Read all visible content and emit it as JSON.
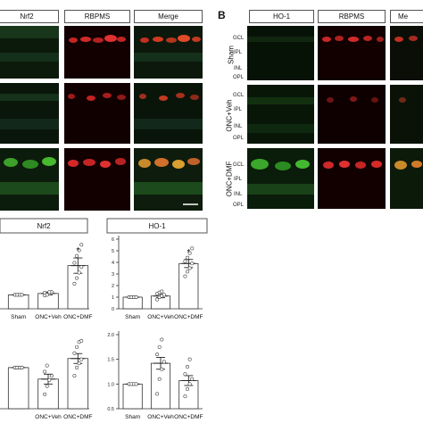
{
  "panel_b_letter": "B",
  "panel_a": {
    "headers": [
      "Nrf2",
      "RBPMS",
      "Merge"
    ]
  },
  "panel_b": {
    "headers": [
      "HO-1",
      "RBPMS",
      "Me"
    ],
    "rows": [
      "Sham",
      "ONC+Veh",
      "ONC+DMF"
    ],
    "layers": [
      "GCL",
      "IPL",
      "INL",
      "OPL"
    ]
  },
  "chart_data": [
    {
      "type": "bar",
      "title": "Nrf2",
      "categories": [
        "Sham",
        "ONC+Veh",
        "ONC+DMF"
      ],
      "values": [
        1.0,
        1.1,
        3.1
      ],
      "errors": [
        0.05,
        0.1,
        0.55
      ],
      "points": [
        [
          1,
          1,
          1,
          1,
          1,
          1,
          1,
          1
        ],
        [
          0.95,
          1.05,
          1.1,
          1.2,
          1.15,
          1.0,
          1.2
        ],
        [
          1.8,
          2.2,
          2.6,
          3.0,
          3.3,
          3.8,
          4.2,
          4.6
        ]
      ],
      "significance": [
        "",
        "",
        "*"
      ]
    },
    {
      "type": "bar",
      "title": "HO-1",
      "categories": [
        "Sham",
        "ONC+Veh",
        "ONC+DMF"
      ],
      "values": [
        1.0,
        1.1,
        3.9
      ],
      "errors": [
        0.05,
        0.15,
        0.35
      ],
      "ylim": [
        0,
        6
      ],
      "yticks": [
        "0",
        "1",
        "2",
        "3",
        "4",
        "5",
        "6"
      ],
      "points": [
        [
          1,
          1,
          1,
          1,
          1,
          1,
          1,
          1
        ],
        [
          0.8,
          1.0,
          1.1,
          1.2,
          1.3,
          1.4,
          1.5
        ],
        [
          2.8,
          3.2,
          3.5,
          3.9,
          4.1,
          4.4,
          4.8,
          5.2
        ]
      ],
      "significance": [
        "",
        "",
        "*"
      ]
    },
    {
      "type": "bar",
      "categories": [
        "",
        "ONC+Veh",
        "ONC+DMF"
      ],
      "values": [
        1.0,
        0.72,
        1.22
      ],
      "errors": [
        0.02,
        0.12,
        0.12
      ],
      "points": [
        [
          1,
          1,
          1,
          1,
          1,
          1,
          1,
          1
        ],
        [
          0.35,
          0.55,
          0.7,
          0.8,
          0.9,
          1.05
        ],
        [
          0.8,
          1.0,
          1.1,
          1.2,
          1.35,
          1.5,
          1.62,
          1.65
        ]
      ]
    },
    {
      "type": "bar",
      "categories": [
        "Sham",
        "ONC+Veh",
        "ONC+DMF"
      ],
      "values": [
        1.0,
        1.42,
        1.07
      ],
      "errors": [
        0.01,
        0.12,
        0.1
      ],
      "ylim": [
        0.5,
        2.0
      ],
      "yticks": [
        "0.5",
        "1.0",
        "1.5",
        "2.0"
      ],
      "points": [
        [
          1,
          1,
          1,
          1,
          1,
          1,
          1,
          1
        ],
        [
          0.8,
          1.1,
          1.3,
          1.45,
          1.6,
          1.75,
          1.9
        ],
        [
          0.75,
          0.9,
          1.0,
          1.1,
          1.2,
          1.35,
          1.5
        ]
      ]
    }
  ]
}
